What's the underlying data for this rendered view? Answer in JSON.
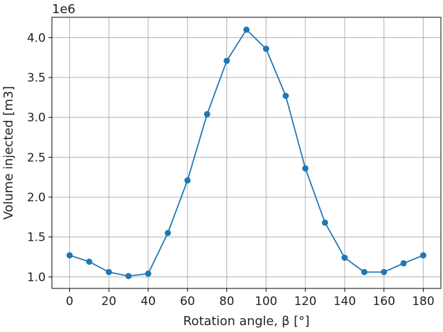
{
  "chart_data": {
    "type": "line",
    "xlabel": "Rotation angle, β [°]",
    "ylabel": "Volume injected [m3]",
    "y_offset_label": "1e6",
    "xlim": [
      -9,
      189
    ],
    "ylim": [
      0.855,
      4.255
    ],
    "x_ticks": [
      0,
      20,
      40,
      60,
      80,
      100,
      120,
      140,
      160,
      180
    ],
    "y_ticks": [
      1.0,
      1.5,
      2.0,
      2.5,
      3.0,
      3.5,
      4.0
    ],
    "y_tick_labels": [
      "1.0",
      "1.5",
      "2.0",
      "2.5",
      "3.0",
      "3.5",
      "4.0"
    ],
    "grid": true,
    "series": [
      {
        "color": "#1f77b4",
        "marker": "circle",
        "x": [
          0,
          10,
          20,
          30,
          40,
          50,
          60,
          70,
          80,
          90,
          100,
          110,
          120,
          130,
          140,
          150,
          160,
          170,
          180
        ],
        "y": [
          1.27,
          1.19,
          1.06,
          1.01,
          1.04,
          1.55,
          2.21,
          3.04,
          3.71,
          4.1,
          3.86,
          3.27,
          2.36,
          1.68,
          1.24,
          1.06,
          1.06,
          1.17,
          1.27
        ]
      }
    ]
  }
}
